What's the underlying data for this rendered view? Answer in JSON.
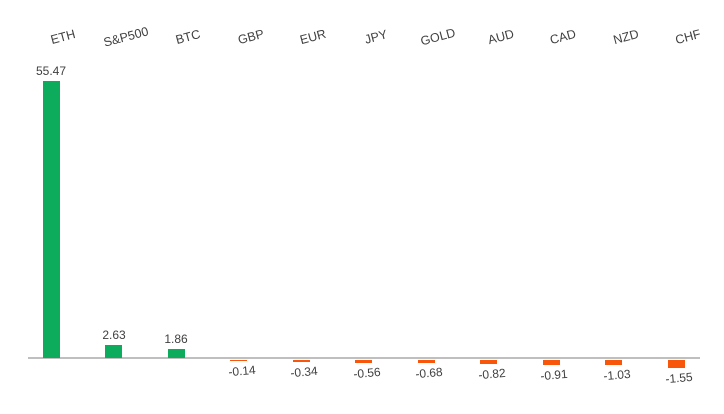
{
  "chart_data": {
    "type": "bar",
    "title": "",
    "xlabel": "",
    "ylabel": "",
    "categories": [
      "ETH",
      "S&P500",
      "BTC",
      "GBP",
      "EUR",
      "JPY",
      "GOLD",
      "AUD",
      "CAD",
      "NZD",
      "CHF"
    ],
    "values": [
      55.47,
      2.63,
      1.86,
      -0.14,
      -0.34,
      -0.56,
      -0.68,
      -0.82,
      -0.91,
      -1.03,
      -1.55
    ],
    "value_labels": [
      "55.47",
      "2.63",
      "1.86",
      "-0.14",
      "-0.34",
      "-0.56",
      "-0.68",
      "-0.82",
      "-0.91",
      "-1.03",
      "-1.55"
    ],
    "ylim": [
      -5,
      60
    ],
    "grid": false,
    "legend": false,
    "baseline_value": 0,
    "positive_color": "#0DAB5C",
    "negative_color": "#F8570B",
    "axis_line_color": "#BFBFBF",
    "label_color": "#404040"
  }
}
